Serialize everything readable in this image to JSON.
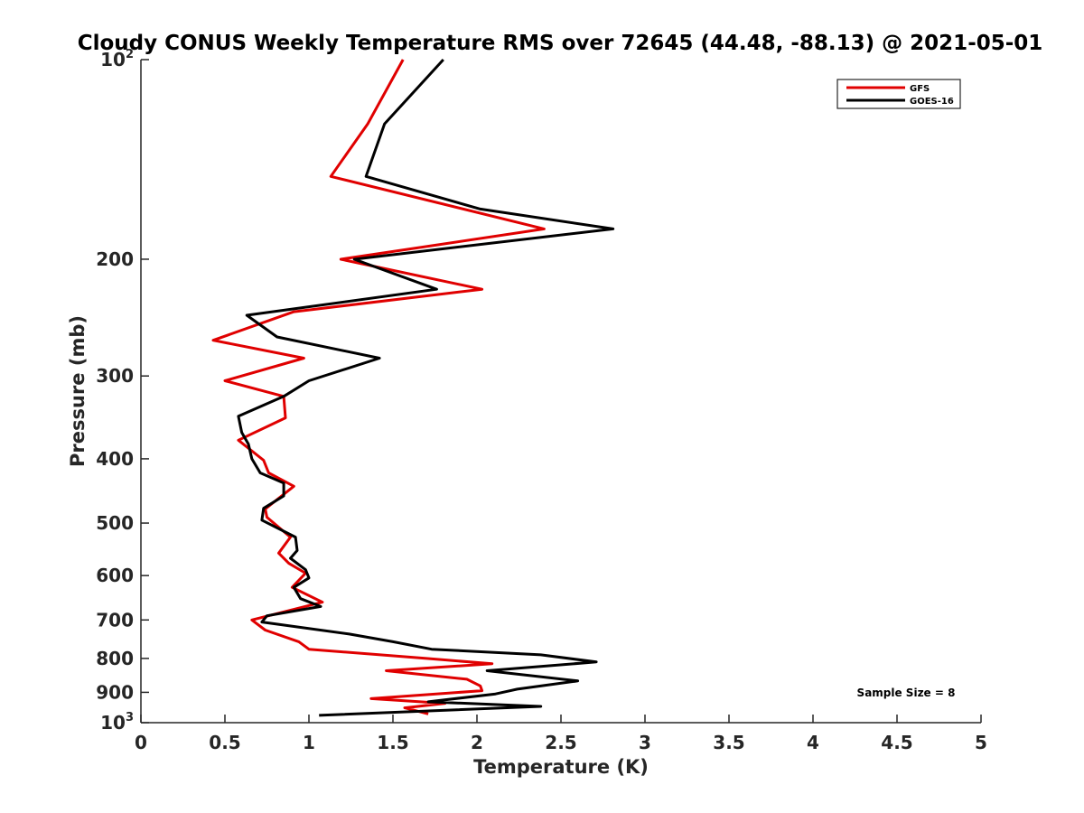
{
  "chart_data": {
    "type": "line",
    "title": "Cloudy CONUS Weekly Temperature RMS over 72645 (44.48, -88.13) @ 2021-05-01",
    "xlabel": "Temperature (K)",
    "ylabel": "Pressure (mb)",
    "xlim": [
      0,
      5
    ],
    "ylim": [
      100,
      1000
    ],
    "y_scale": "log",
    "y_reversed": true,
    "x_ticks": [
      {
        "value": 0,
        "label": "0"
      },
      {
        "value": 0.5,
        "label": "0.5"
      },
      {
        "value": 1,
        "label": "1"
      },
      {
        "value": 1.5,
        "label": "1.5"
      },
      {
        "value": 2,
        "label": "2"
      },
      {
        "value": 2.5,
        "label": "2.5"
      },
      {
        "value": 3,
        "label": "3"
      },
      {
        "value": 3.5,
        "label": "3.5"
      },
      {
        "value": 4,
        "label": "4"
      },
      {
        "value": 4.5,
        "label": "4.5"
      },
      {
        "value": 5,
        "label": "5"
      }
    ],
    "y_ticks": [
      {
        "value": 100,
        "label": "10",
        "sup": "2"
      },
      {
        "value": 200,
        "label": "200",
        "sup": ""
      },
      {
        "value": 300,
        "label": "300",
        "sup": ""
      },
      {
        "value": 400,
        "label": "400",
        "sup": ""
      },
      {
        "value": 500,
        "label": "500",
        "sup": ""
      },
      {
        "value": 600,
        "label": "600",
        "sup": ""
      },
      {
        "value": 700,
        "label": "700",
        "sup": ""
      },
      {
        "value": 800,
        "label": "800",
        "sup": ""
      },
      {
        "value": 900,
        "label": "900",
        "sup": ""
      },
      {
        "value": 1000,
        "label": "10",
        "sup": "3"
      }
    ],
    "grid": false,
    "legend_position": "top-right",
    "annotation": "Sample Size = 8",
    "series": [
      {
        "name": "GFS",
        "color": "#e00000",
        "points": [
          [
            1.56,
            100
          ],
          [
            1.35,
            125
          ],
          [
            1.13,
            150
          ],
          [
            2.4,
            180
          ],
          [
            1.19,
            200
          ],
          [
            2.03,
            222
          ],
          [
            0.91,
            240
          ],
          [
            0.43,
            265
          ],
          [
            0.97,
            282
          ],
          [
            0.5,
            305
          ],
          [
            0.85,
            322
          ],
          [
            0.86,
            347
          ],
          [
            0.58,
            375
          ],
          [
            0.73,
            402
          ],
          [
            0.76,
            420
          ],
          [
            0.91,
            440
          ],
          [
            0.74,
            476
          ],
          [
            0.75,
            490
          ],
          [
            0.89,
            525
          ],
          [
            0.82,
            555
          ],
          [
            0.88,
            575
          ],
          [
            0.98,
            595
          ],
          [
            0.9,
            625
          ],
          [
            1.08,
            658
          ],
          [
            0.66,
            700
          ],
          [
            0.74,
            725
          ],
          [
            0.94,
            755
          ],
          [
            1.0,
            775
          ],
          [
            1.7,
            800
          ],
          [
            2.09,
            815
          ],
          [
            1.46,
            835
          ],
          [
            1.94,
            860
          ],
          [
            2.02,
            880
          ],
          [
            2.03,
            895
          ],
          [
            1.37,
            920
          ],
          [
            1.81,
            935
          ],
          [
            1.57,
            950
          ],
          [
            1.71,
            970
          ]
        ]
      },
      {
        "name": "GOES-16",
        "color": "#000000",
        "points": [
          [
            1.8,
            100
          ],
          [
            1.45,
            125
          ],
          [
            1.34,
            150
          ],
          [
            2.02,
            168
          ],
          [
            2.81,
            180
          ],
          [
            1.27,
            200
          ],
          [
            1.76,
            222
          ],
          [
            0.63,
            243
          ],
          [
            0.81,
            262
          ],
          [
            1.42,
            282
          ],
          [
            1.0,
            305
          ],
          [
            0.85,
            322
          ],
          [
            0.58,
            345
          ],
          [
            0.6,
            365
          ],
          [
            0.64,
            380
          ],
          [
            0.66,
            400
          ],
          [
            0.71,
            420
          ],
          [
            0.85,
            435
          ],
          [
            0.85,
            455
          ],
          [
            0.73,
            475
          ],
          [
            0.72,
            495
          ],
          [
            0.92,
            525
          ],
          [
            0.93,
            550
          ],
          [
            0.89,
            565
          ],
          [
            0.98,
            588
          ],
          [
            1.0,
            605
          ],
          [
            0.91,
            625
          ],
          [
            0.95,
            650
          ],
          [
            1.07,
            668
          ],
          [
            0.75,
            690
          ],
          [
            0.72,
            705
          ],
          [
            1.24,
            735
          ],
          [
            1.5,
            755
          ],
          [
            1.73,
            775
          ],
          [
            2.38,
            790
          ],
          [
            2.71,
            810
          ],
          [
            2.06,
            835
          ],
          [
            2.6,
            865
          ],
          [
            2.24,
            890
          ],
          [
            2.11,
            905
          ],
          [
            1.71,
            930
          ],
          [
            2.38,
            945
          ],
          [
            1.06,
            975
          ]
        ]
      }
    ]
  }
}
